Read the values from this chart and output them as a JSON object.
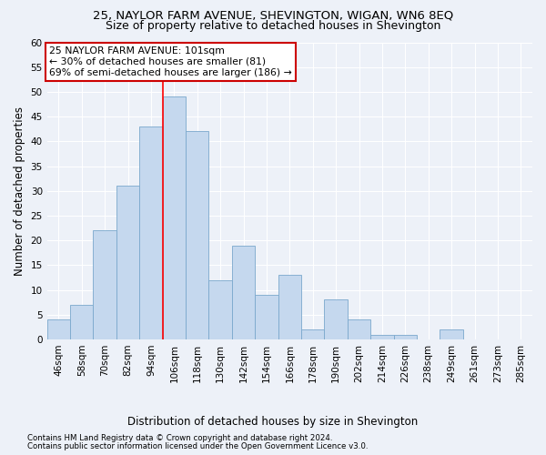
{
  "title": "25, NAYLOR FARM AVENUE, SHEVINGTON, WIGAN, WN6 8EQ",
  "subtitle": "Size of property relative to detached houses in Shevington",
  "xlabel": "Distribution of detached houses by size in Shevington",
  "ylabel": "Number of detached properties",
  "categories": [
    "46sqm",
    "58sqm",
    "70sqm",
    "82sqm",
    "94sqm",
    "106sqm",
    "118sqm",
    "130sqm",
    "142sqm",
    "154sqm",
    "166sqm",
    "178sqm",
    "190sqm",
    "202sqm",
    "214sqm",
    "226sqm",
    "238sqm",
    "249sqm",
    "261sqm",
    "273sqm",
    "285sqm"
  ],
  "values": [
    4,
    7,
    22,
    31,
    43,
    49,
    42,
    12,
    19,
    9,
    13,
    2,
    8,
    4,
    1,
    1,
    0,
    2,
    0,
    0,
    0
  ],
  "bar_color": "#c5d8ee",
  "bar_edge_color": "#7aa8cc",
  "bar_width": 1.0,
  "redline_x": 4.5,
  "annotation_text": "25 NAYLOR FARM AVENUE: 101sqm\n← 30% of detached houses are smaller (81)\n69% of semi-detached houses are larger (186) →",
  "annotation_box_color": "#ffffff",
  "annotation_box_edge_color": "#cc0000",
  "ylim": [
    0,
    60
  ],
  "yticks": [
    0,
    5,
    10,
    15,
    20,
    25,
    30,
    35,
    40,
    45,
    50,
    55,
    60
  ],
  "background_color": "#edf1f8",
  "grid_color": "#ffffff",
  "footnote1": "Contains HM Land Registry data © Crown copyright and database right 2024.",
  "footnote2": "Contains public sector information licensed under the Open Government Licence v3.0.",
  "title_fontsize": 9.5,
  "subtitle_fontsize": 9,
  "annotation_fontsize": 7.8,
  "xlabel_fontsize": 8.5,
  "ylabel_fontsize": 8.5,
  "tick_fontsize": 7.5,
  "footnote_fontsize": 6.2
}
